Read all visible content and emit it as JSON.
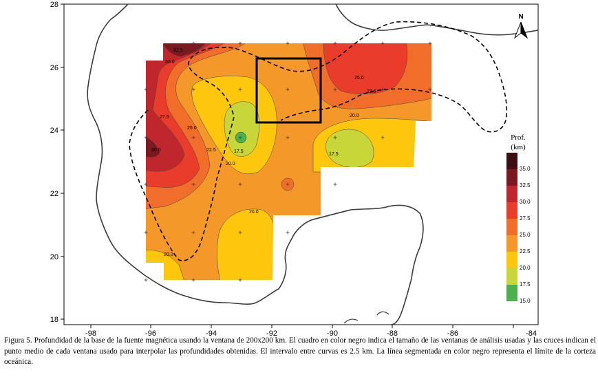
{
  "map": {
    "x_ticks": [
      "-98",
      "-96",
      "-94",
      "-92",
      "-90",
      "-88",
      "-86",
      "-84"
    ],
    "y_ticks": [
      "28",
      "26",
      "24",
      "22",
      "20",
      "18"
    ],
    "north_label": "N"
  },
  "legend": {
    "title_line1": "Prof.",
    "title_line2": "(km)",
    "items": [
      {
        "value": "35.0",
        "color": "#3d0f12"
      },
      {
        "value": "32.5",
        "color": "#7b1a1e"
      },
      {
        "value": "30.0",
        "color": "#c0272d"
      },
      {
        "value": "27.5",
        "color": "#ea3c2a"
      },
      {
        "value": "25.0",
        "color": "#f16e2a"
      },
      {
        "value": "22.5",
        "color": "#f4982a"
      },
      {
        "value": "20.0",
        "color": "#fdc70e"
      },
      {
        "value": "17.5",
        "color": "#c8d63a"
      },
      {
        "value": "15.0",
        "color": "#4cb04d"
      }
    ]
  },
  "contour_labels": [
    "32.5",
    "30.0",
    "27.5",
    "25.0",
    "22.5",
    "20.0",
    "17.5",
    "30.0",
    "25.0",
    "22.5",
    "20.0",
    "17.5",
    "20.0",
    "20.0"
  ],
  "caption": "Figura 5. Profundidad de la base de la fuente magnética usando la ventana de 200x200 km. El cuadro en color negro indica el tamaño de las ventanas de análisis usadas y las cruces indican el punto medio de cada ventana usado para interpolar las profundidades obtenidas. El intervalo entre curvas es 2.5 km. La línea segmentada en color negro representa el límite de la corteza oceánica."
}
